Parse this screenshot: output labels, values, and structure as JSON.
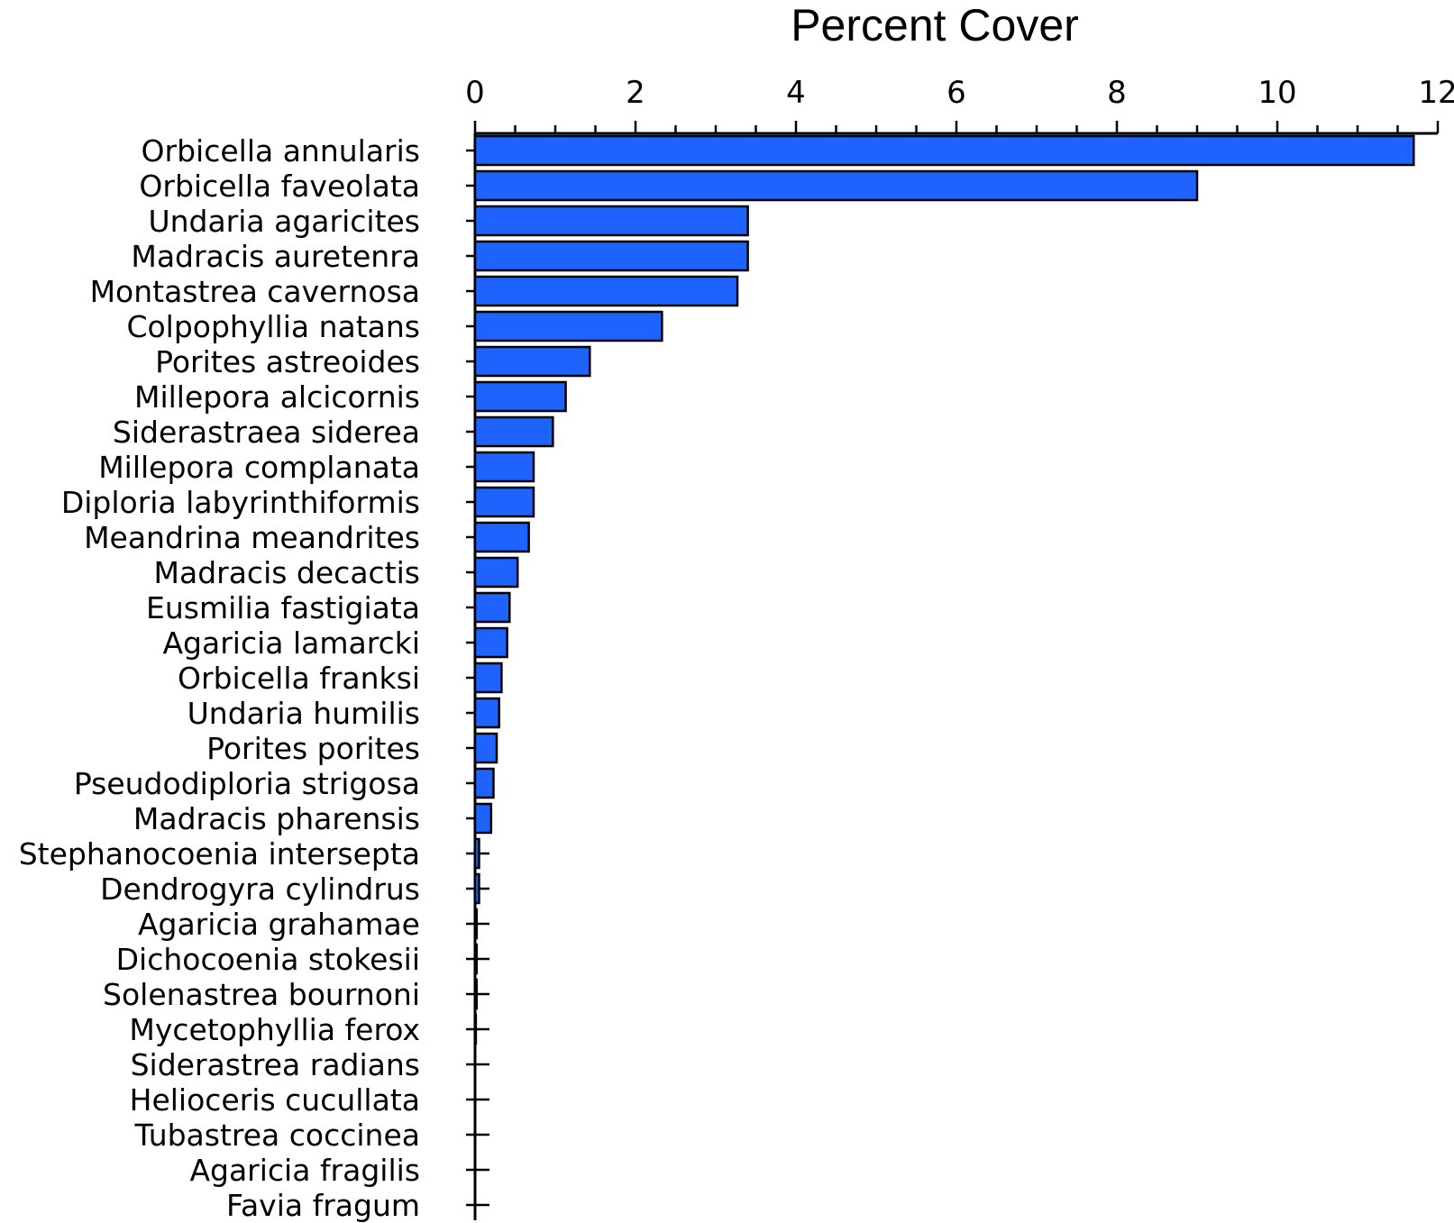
{
  "chart_data": {
    "type": "bar",
    "orientation": "horizontal",
    "title": "Percent Cover",
    "xlabel": "",
    "ylabel": "",
    "xlim": [
      0,
      12
    ],
    "ticks": [
      "0",
      "2",
      "4",
      "6",
      "8",
      "10",
      "12"
    ],
    "tick_values": [
      0,
      2,
      4,
      6,
      8,
      10,
      12
    ],
    "grid": false,
    "bar_color": "#1f63ff",
    "categories": [
      "Orbicella annularis",
      "Orbicella faveolata",
      "Undaria agaricites",
      "Madracis auretenra",
      "Montastrea cavernosa",
      "Colpophyllia natans",
      "Porites astreoides",
      "Millepora alcicornis",
      "Siderastraea siderea",
      "Millepora complanata",
      "Diploria labyrinthiformis",
      "Meandrina meandrites",
      "Madracis decactis",
      "Eusmilia fastigiata",
      "Agaricia lamarcki",
      "Orbicella franksi",
      "Undaria humilis",
      "Porites porites",
      "Pseudodiploria strigosa",
      "Madracis pharensis",
      "Stephanocoenia intersepta",
      "Dendrogyra cylindrus",
      "Agaricia grahamae",
      "Dichocoenia stokesii",
      "Solenastrea bournoni",
      "Mycetophyllia ferox",
      "Siderastrea radians",
      "Helioceris cucullata",
      "Tubastrea coccinea",
      "Agaricia fragilis",
      "Favia fragum"
    ],
    "values": [
      11.7,
      9.0,
      3.4,
      3.4,
      3.27,
      2.33,
      1.43,
      1.13,
      0.97,
      0.73,
      0.73,
      0.67,
      0.53,
      0.43,
      0.4,
      0.33,
      0.3,
      0.27,
      0.23,
      0.2,
      0.05,
      0.05,
      0.02,
      0.02,
      0.02,
      0.01,
      0.0,
      0.0,
      0.0,
      0.0,
      0.0
    ]
  }
}
